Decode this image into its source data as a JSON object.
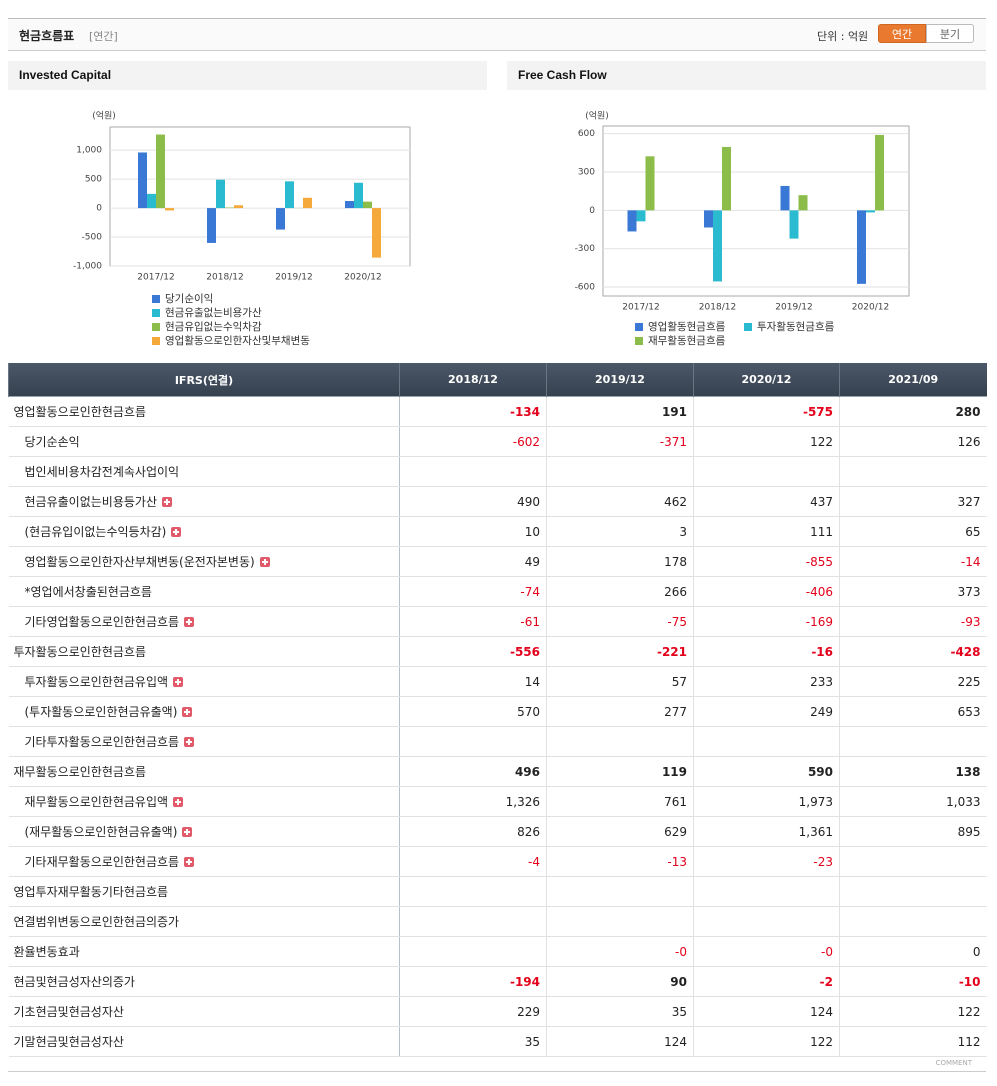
{
  "header": {
    "title": "현금흐름표",
    "period": "[연간]",
    "unit": "단위 : 억원",
    "buttons": [
      "연간",
      "분기"
    ]
  },
  "chart_data": [
    {
      "type": "bar",
      "title": "Invested Capital",
      "y_label": "(억원)",
      "categories": [
        "2017/12",
        "2018/12",
        "2019/12",
        "2020/12"
      ],
      "series": [
        {
          "name": "당기순이익",
          "color": "#3a78d6",
          "values": [
            960,
            -602,
            -371,
            122
          ]
        },
        {
          "name": "현금유출없는비용가산",
          "color": "#2bbbd0",
          "values": [
            245,
            490,
            462,
            437
          ]
        },
        {
          "name": "현금유입없는수익차감",
          "color": "#8cbc4a",
          "values": [
            1270,
            10,
            3,
            111
          ]
        },
        {
          "name": "영업활동으로인한자산및부채변동",
          "color": "#f5a93a",
          "values": [
            -40,
            49,
            178,
            -855
          ]
        }
      ],
      "ylim": [
        -1000,
        1400
      ],
      "yticks": [
        {
          "value": -1000,
          "label": "-1,000"
        },
        -500,
        0,
        500,
        {
          "value": 1000,
          "label": "1,000"
        }
      ],
      "grid": true
    },
    {
      "type": "bar",
      "title": "Free Cash Flow",
      "y_label": "(억원)",
      "categories": [
        "2017/12",
        "2018/12",
        "2019/12",
        "2020/12"
      ],
      "series": [
        {
          "name": "영업활동현금흐름",
          "color": "#3a78d6",
          "values": [
            -165,
            -134,
            191,
            -575
          ]
        },
        {
          "name": "투자활동현금흐름",
          "color": "#2bbbd0",
          "values": [
            -86,
            -556,
            -221,
            -16
          ]
        },
        {
          "name": "재무활동현금흐름",
          "color": "#8cbc4a",
          "values": [
            423,
            496,
            119,
            590
          ]
        }
      ],
      "ylim": [
        -670,
        660
      ],
      "yticks": [
        -600,
        -300,
        0,
        300,
        600
      ],
      "grid": true
    }
  ],
  "table": {
    "columns": [
      "IFRS(연결)",
      "2018/12",
      "2019/12",
      "2020/12",
      "2021/09"
    ],
    "rows": [
      {
        "label": "영업활동으로인한현금흐름",
        "cells": [
          "-134",
          "191",
          "-575",
          "280"
        ]
      },
      {
        "label": "당기순손익",
        "cells": [
          "-602",
          "-371",
          "122",
          "126"
        ]
      },
      {
        "label": "법인세비용차감전계속사업이익",
        "cells": [
          null,
          null,
          null,
          null
        ]
      },
      {
        "label": "현금유출이없는비용등가산",
        "cells": [
          "490",
          "462",
          "437",
          "327"
        ]
      },
      {
        "label": "(현금유입이없는수익등차감)",
        "cells": [
          "10",
          "3",
          "111",
          "65"
        ]
      },
      {
        "label": "영업활동으로인한자산부채변동(운전자본변동)",
        "cells": [
          "49",
          "178",
          "-855",
          "-14"
        ]
      },
      {
        "label": "*영업에서창출된현금흐름",
        "cells": [
          "-74",
          "266",
          "-406",
          "373"
        ]
      },
      {
        "label": "기타영업활동으로인한현금흐름",
        "cells": [
          "-61",
          "-75",
          "-169",
          "-93"
        ]
      },
      {
        "label": "투자활동으로인한현금흐름",
        "cells": [
          "-556",
          "-221",
          "-16",
          "-428"
        ]
      },
      {
        "label": "투자활동으로인한현금유입액",
        "cells": [
          "14",
          "57",
          "233",
          "225"
        ]
      },
      {
        "label": "(투자활동으로인한현금유출액)",
        "cells": [
          "570",
          "277",
          "249",
          "653"
        ]
      },
      {
        "label": "기타투자활동으로인한현금흐름",
        "cells": [
          null,
          null,
          null,
          null
        ]
      },
      {
        "label": "재무활동으로인한현금흐름",
        "cells": [
          "496",
          "119",
          "590",
          "138"
        ]
      },
      {
        "label": "재무활동으로인한현금유입액",
        "cells": [
          "1,326",
          "761",
          "1,973",
          "1,033"
        ]
      },
      {
        "label": "(재무활동으로인한현금유출액)",
        "cells": [
          "826",
          "629",
          "1,361",
          "895"
        ]
      },
      {
        "label": "기타재무활동으로인한현금흐름",
        "cells": [
          "-4",
          "-13",
          "-23",
          null
        ]
      },
      {
        "label": "영업투자재무활동기타현금흐름",
        "cells": [
          null,
          null,
          null,
          null
        ]
      },
      {
        "label": "연결범위변동으로인한현금의증가",
        "cells": [
          null,
          null,
          null,
          null
        ]
      },
      {
        "label": "환율변동효과",
        "cells": [
          null,
          "-0",
          "-0",
          "0"
        ]
      },
      {
        "label": "현금및현금성자산의증가",
        "cells": [
          "-194",
          "90",
          "-2",
          "-10"
        ]
      },
      {
        "label": "기초현금및현금성자산",
        "cells": [
          "229",
          "35",
          "124",
          "122"
        ]
      },
      {
        "label": "기말현금및현금성자산",
        "cells": [
          "35",
          "124",
          "122",
          "112"
        ]
      }
    ]
  },
  "footer": {
    "comment": "COMMENT"
  }
}
